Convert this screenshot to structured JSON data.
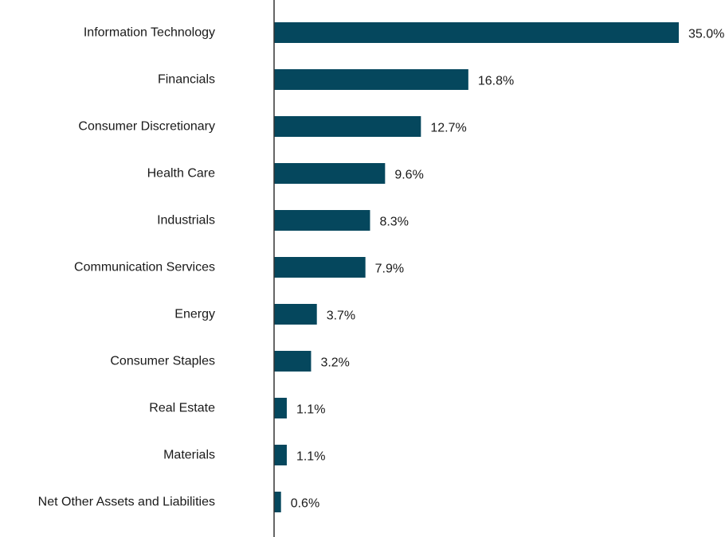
{
  "chart_data": {
    "type": "bar",
    "orientation": "horizontal",
    "title": "",
    "xlabel": "",
    "ylabel": "",
    "xlim": [
      0,
      35
    ],
    "grid": false,
    "legend": "none",
    "bar_color": "#05475d",
    "axis_color": "#333333",
    "text_color": "#1a1a1a",
    "categories": [
      "Information Technology",
      "Financials",
      "Consumer Discretionary",
      "Health Care",
      "Industrials",
      "Communication Services",
      "Energy",
      "Consumer Staples",
      "Real Estate",
      "Materials",
      "Net Other Assets and Liabilities"
    ],
    "values": [
      35.0,
      16.8,
      12.7,
      9.6,
      8.3,
      7.9,
      3.7,
      3.2,
      1.1,
      1.1,
      0.6
    ],
    "value_labels": [
      "35.0%",
      "16.8%",
      "12.7%",
      "9.6%",
      "8.3%",
      "7.9%",
      "3.7%",
      "3.2%",
      "1.1%",
      "1.1%",
      "0.6%"
    ]
  }
}
